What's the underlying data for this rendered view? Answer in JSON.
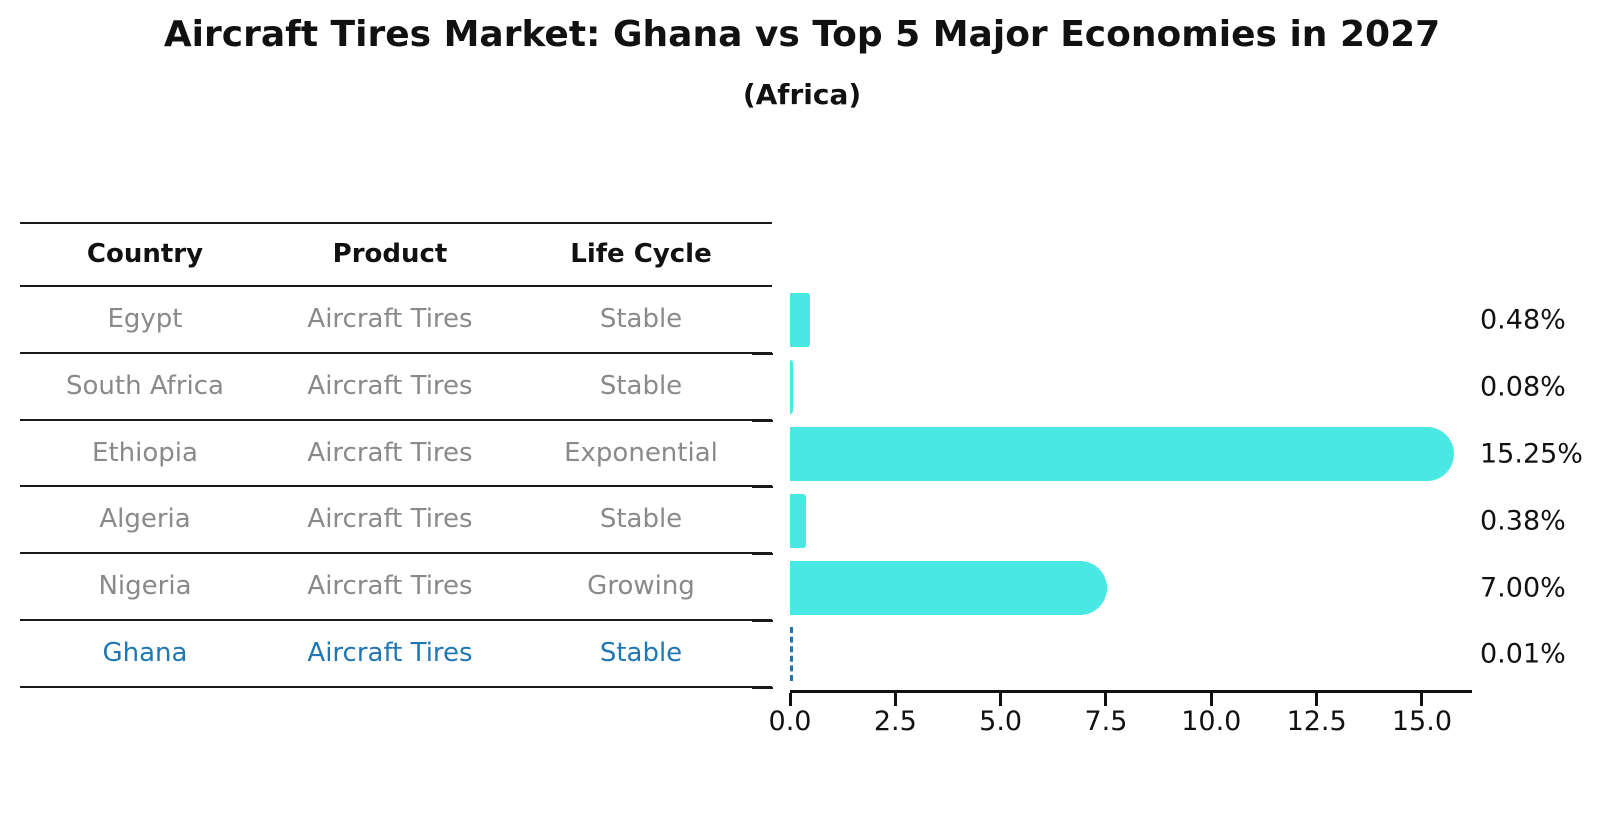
{
  "chart_data": {
    "type": "bar",
    "orientation": "horizontal",
    "title": "Aircraft Tires Market: Ghana vs Top 5 Major Economies in 2027",
    "subtitle": "(Africa)",
    "categories": [
      "Egypt",
      "South Africa",
      "Ethiopia",
      "Algeria",
      "Nigeria",
      "Ghana"
    ],
    "values": [
      0.48,
      0.08,
      15.25,
      0.38,
      7.0,
      0.01
    ],
    "value_labels": [
      "0.48%",
      "0.08%",
      "15.25%",
      "0.38%",
      "7.00%",
      "0.01%"
    ],
    "x_ticks": [
      "0.0",
      "2.5",
      "5.0",
      "7.5",
      "10.0",
      "12.5",
      "15.0"
    ],
    "xlim": [
      0,
      16.2
    ],
    "grid": false,
    "legend": "none",
    "bar_color": "#4AE8E2",
    "highlight_color": "#1f77b4",
    "highlight_index": 5,
    "axis_color": "#111111",
    "table": {
      "headers": [
        "Country",
        "Product",
        "Life Cycle"
      ],
      "rows": [
        {
          "country": "Egypt",
          "product": "Aircraft Tires",
          "life_cycle": "Stable",
          "highlighted": false
        },
        {
          "country": "South Africa",
          "product": "Aircraft Tires",
          "life_cycle": "Stable",
          "highlighted": false
        },
        {
          "country": "Ethiopia",
          "product": "Aircraft Tires",
          "life_cycle": "Exponential",
          "highlighted": false
        },
        {
          "country": "Algeria",
          "product": "Aircraft Tires",
          "life_cycle": "Stable",
          "highlighted": false
        },
        {
          "country": "Nigeria",
          "product": "Aircraft Tires",
          "life_cycle": "Growing",
          "highlighted": false
        },
        {
          "country": "Ghana",
          "product": "Aircraft Tires",
          "life_cycle": "Stable",
          "highlighted": true
        }
      ]
    }
  }
}
